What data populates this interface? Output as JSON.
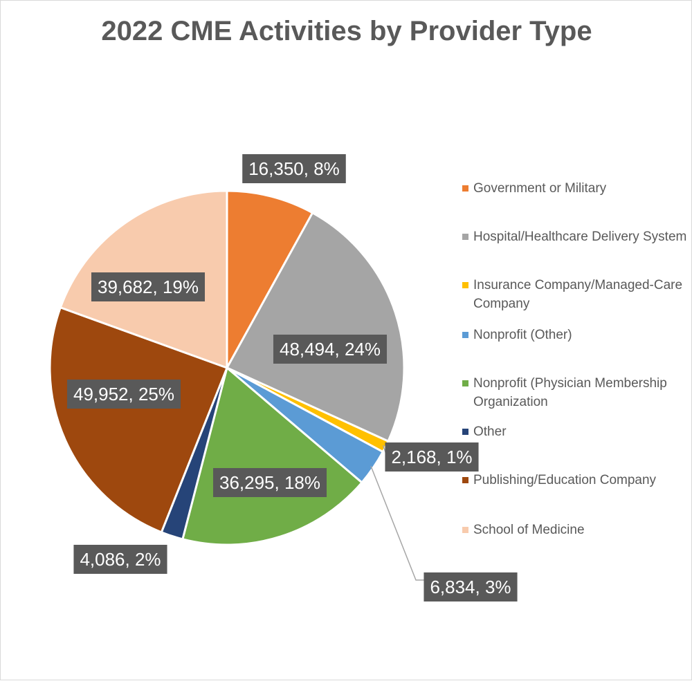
{
  "chart_data": {
    "type": "pie",
    "title": "2022 CME Activities by Provider Type",
    "slices": [
      {
        "name": "Government or Military",
        "value": 16350,
        "percent": 8,
        "label": "16,350, 8%",
        "color": "#ED7D31"
      },
      {
        "name": "Hospital/Healthcare Delivery System",
        "value": 48494,
        "percent": 24,
        "label": "48,494, 24%",
        "color": "#A5A5A5"
      },
      {
        "name": "Insurance Company/Managed-Care Company",
        "value": 2168,
        "percent": 1,
        "label": "2,168, 1%",
        "color": "#FFC000"
      },
      {
        "name": "Nonprofit (Other)",
        "value": 6834,
        "percent": 3,
        "label": "6,834, 3%",
        "color": "#5B9BD5"
      },
      {
        "name": "Nonprofit (Physician Membership Organization",
        "value": 36295,
        "percent": 18,
        "label": "36,295, 18%",
        "color": "#70AD47"
      },
      {
        "name": "Other",
        "value": 4086,
        "percent": 2,
        "label": "4,086, 2%",
        "color": "#264478"
      },
      {
        "name": "Publishing/Education Company",
        "value": 49952,
        "percent": 25,
        "label": "49,952, 25%",
        "color": "#9E480E"
      },
      {
        "name": "School of Medicine",
        "value": 39682,
        "percent": 19,
        "label": "39,682, 19%",
        "color": "#F8CBAD"
      }
    ],
    "legend_position": "right",
    "label_style": "value, percent"
  }
}
